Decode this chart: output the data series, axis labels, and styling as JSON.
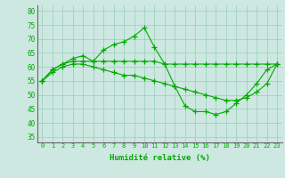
{
  "x": [
    0,
    1,
    2,
    3,
    4,
    5,
    6,
    7,
    8,
    9,
    10,
    11,
    12,
    13,
    14,
    15,
    16,
    17,
    18,
    19,
    20,
    21,
    22,
    23
  ],
  "line1": [
    55,
    59,
    61,
    63,
    64,
    62,
    66,
    68,
    69,
    71,
    74,
    67,
    61,
    53,
    46,
    44,
    44,
    43,
    44,
    47,
    50,
    54,
    59,
    61
  ],
  "line2": [
    55,
    59,
    61,
    62,
    62,
    62,
    62,
    62,
    62,
    62,
    62,
    62,
    61,
    61,
    61,
    61,
    61,
    61,
    61,
    61,
    61,
    61,
    61,
    61
  ],
  "line3": [
    55,
    58,
    60,
    61,
    61,
    60,
    59,
    58,
    57,
    57,
    56,
    55,
    54,
    53,
    52,
    51,
    50,
    49,
    48,
    48,
    49,
    51,
    54,
    61
  ],
  "xlabel": "Humidité relative (%)",
  "bg_color": "#cce8e0",
  "grid_color": "#99ccbb",
  "line_color": "#00aa00",
  "ylim": [
    33,
    82
  ],
  "yticks": [
    35,
    40,
    45,
    50,
    55,
    60,
    65,
    70,
    75,
    80
  ],
  "xticks": [
    0,
    1,
    2,
    3,
    4,
    5,
    6,
    7,
    8,
    9,
    10,
    11,
    12,
    13,
    14,
    15,
    16,
    17,
    18,
    19,
    20,
    21,
    22,
    23
  ]
}
